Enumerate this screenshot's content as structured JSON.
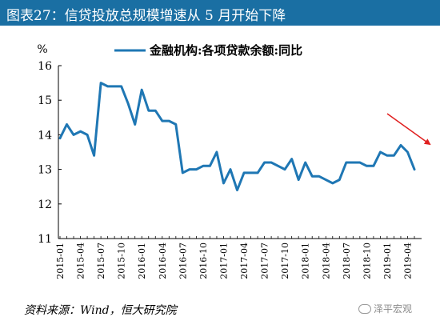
{
  "header": {
    "title": "图表27：信贷投放总规模增速从 5 月开始下降"
  },
  "footer": {
    "source": "资料来源：Wind，恒大研究院",
    "watermark": "泽平宏观"
  },
  "colors": {
    "title_bg": "#1a6fa3",
    "series": "#1f77b4",
    "arrow": "#e02020",
    "axis": "#000000"
  },
  "chart_data": {
    "type": "line",
    "ylabel": "%",
    "ylim": [
      11,
      16
    ],
    "yticks": [
      11,
      12,
      13,
      14,
      15,
      16
    ],
    "xticks": [
      "2015-01",
      "2015-04",
      "2015-07",
      "2015-10",
      "2016-01",
      "2016-04",
      "2016-07",
      "2016-10",
      "2017-01",
      "2017-04",
      "2017-07",
      "2017-10",
      "2018-01",
      "2018-04",
      "2018-07",
      "2018-10",
      "2019-01",
      "2019-04"
    ],
    "legend": "top-center",
    "series": [
      {
        "name": "金融机构:各项贷款余额:同比",
        "x": [
          "2015-01",
          "2015-02",
          "2015-03",
          "2015-04",
          "2015-05",
          "2015-06",
          "2015-07",
          "2015-08",
          "2015-09",
          "2015-10",
          "2015-11",
          "2015-12",
          "2016-01",
          "2016-02",
          "2016-03",
          "2016-04",
          "2016-05",
          "2016-06",
          "2016-07",
          "2016-08",
          "2016-09",
          "2016-10",
          "2016-11",
          "2016-12",
          "2017-01",
          "2017-02",
          "2017-03",
          "2017-04",
          "2017-05",
          "2017-06",
          "2017-07",
          "2017-08",
          "2017-09",
          "2017-10",
          "2017-11",
          "2017-12",
          "2018-01",
          "2018-02",
          "2018-03",
          "2018-04",
          "2018-05",
          "2018-06",
          "2018-07",
          "2018-08",
          "2018-09",
          "2018-10",
          "2018-11",
          "2018-12",
          "2019-01",
          "2019-02",
          "2019-03",
          "2019-04",
          "2019-05"
        ],
        "values": [
          13.9,
          14.3,
          14.0,
          14.1,
          14.0,
          13.4,
          15.5,
          15.4,
          15.4,
          15.4,
          14.9,
          14.3,
          15.3,
          14.7,
          14.7,
          14.4,
          14.4,
          14.3,
          12.9,
          13.0,
          13.0,
          13.1,
          13.1,
          13.5,
          12.6,
          13.0,
          12.4,
          12.9,
          12.9,
          12.9,
          13.2,
          13.2,
          13.1,
          13.0,
          13.3,
          12.7,
          13.2,
          12.8,
          12.8,
          12.7,
          12.6,
          12.7,
          13.2,
          13.2,
          13.2,
          13.1,
          13.1,
          13.5,
          13.4,
          13.4,
          13.7,
          13.5,
          13.0
        ]
      }
    ],
    "annotations": [
      {
        "type": "arrow",
        "description": "trend-down",
        "x": "2019-05"
      }
    ]
  }
}
